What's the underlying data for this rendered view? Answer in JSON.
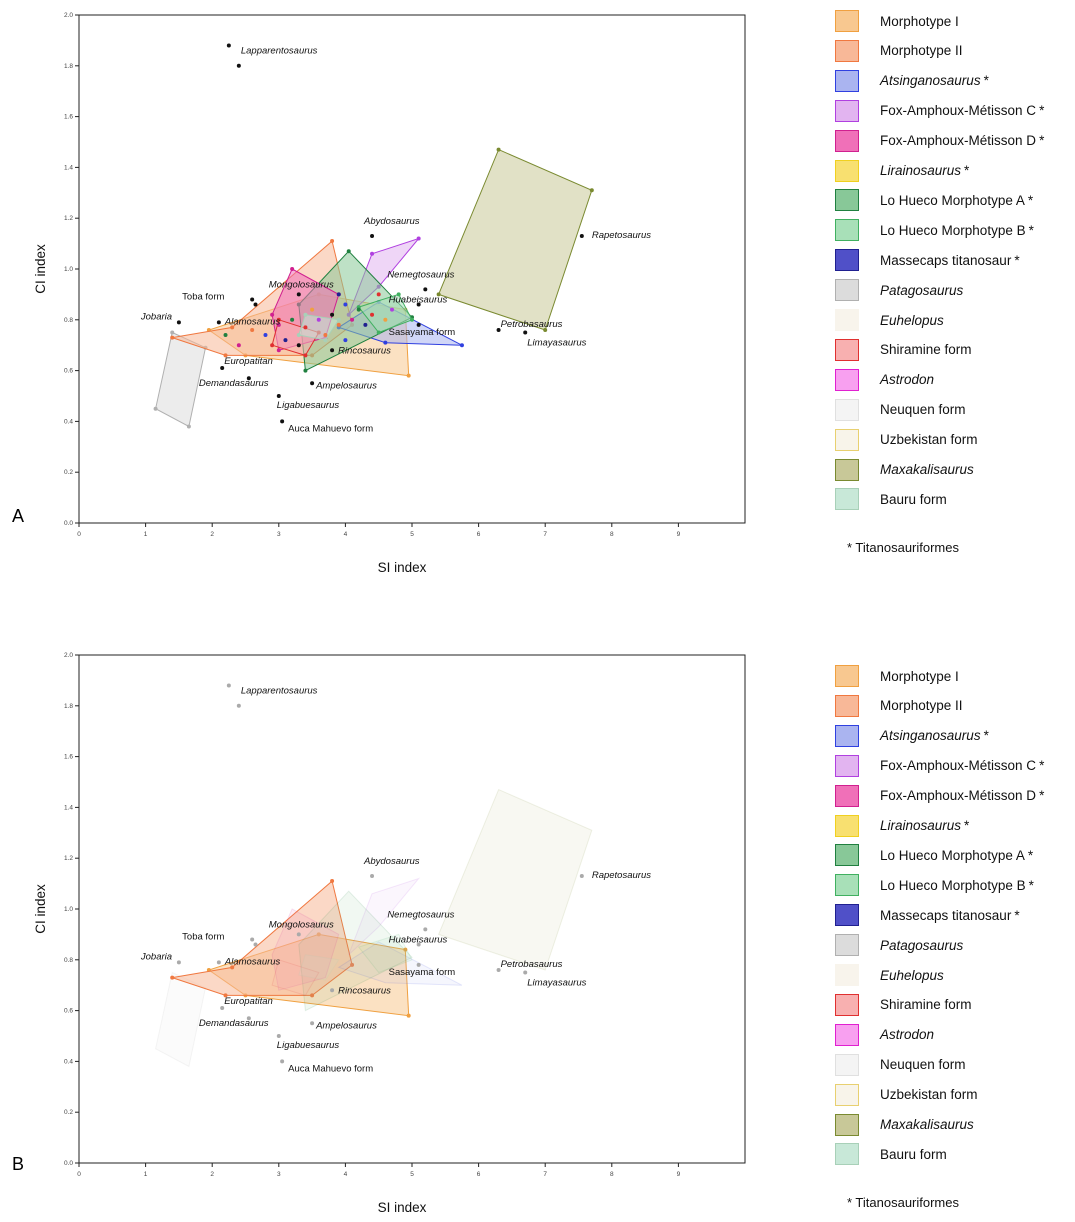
{
  "panels": [
    {
      "letter": "A",
      "mode": "full"
    },
    {
      "letter": "B",
      "mode": "highlight"
    }
  ],
  "legend": {
    "items": [
      {
        "label": "Morphotype I",
        "italic": false,
        "star": false,
        "fill": "#f8c890",
        "stroke": "#f0a040"
      },
      {
        "label": "Morphotype II",
        "italic": false,
        "star": false,
        "fill": "#f8b898",
        "stroke": "#f07840"
      },
      {
        "label": "Atsinganosaurus",
        "italic": true,
        "star": true,
        "fill": "#aab4f0",
        "stroke": "#3040e0"
      },
      {
        "label": "Fox-Amphoux-Métisson C",
        "italic": false,
        "star": true,
        "fill": "#e2b4f0",
        "stroke": "#b040e0"
      },
      {
        "label": "Fox-Amphoux-Métisson D",
        "italic": false,
        "star": true,
        "fill": "#f070b8",
        "stroke": "#d02090"
      },
      {
        "label": "Lirainosaurus",
        "italic": true,
        "star": true,
        "fill": "#f8e070",
        "stroke": "#f0d020"
      },
      {
        "label": "Lo Hueco Morphotype A",
        "italic": false,
        "star": true,
        "fill": "#88c898",
        "stroke": "#208040"
      },
      {
        "label": "Lo Hueco Morphotype B",
        "italic": false,
        "star": true,
        "fill": "#a8e0b8",
        "stroke": "#40b060"
      },
      {
        "label": "Massecaps titanosaur",
        "italic": false,
        "star": true,
        "fill": "#5050c8",
        "stroke": "#202090"
      },
      {
        "label": "Patagosaurus",
        "italic": true,
        "star": false,
        "fill": "#dcdcdc",
        "stroke": "#b0b0b0"
      },
      {
        "label": "Euhelopus",
        "italic": true,
        "star": false,
        "fill": "#f8f4ec",
        "stroke": "#f8f4ec"
      },
      {
        "label": "Shiramine form",
        "italic": false,
        "star": false,
        "fill": "#f8b0b0",
        "stroke": "#e03030"
      },
      {
        "label": "Astrodon",
        "italic": true,
        "star": false,
        "fill": "#f8a0f0",
        "stroke": "#e020d0"
      },
      {
        "label": "Neuquen form",
        "italic": false,
        "star": false,
        "fill": "#f4f4f4",
        "stroke": "#e0e0e0"
      },
      {
        "label": "Uzbekistan form",
        "italic": false,
        "star": false,
        "fill": "#f8f4ea",
        "stroke": "#e8d070"
      },
      {
        "label": "Maxakalisaurus",
        "italic": true,
        "star": false,
        "fill": "#c8c898",
        "stroke": "#7a8a30"
      },
      {
        "label": "Bauru form",
        "italic": false,
        "star": false,
        "fill": "#c8e8d8",
        "stroke": "#a8d0b8"
      }
    ],
    "footnote": "* Titanosauriformes"
  },
  "chart_data": {
    "type": "scatter",
    "xlabel": "SI index",
    "ylabel": "CI index",
    "xlim": [
      0,
      10
    ],
    "ylim": [
      0,
      2.0
    ],
    "xticks": [
      "0",
      "1",
      "2",
      "3",
      "4",
      "5",
      "6",
      "7",
      "8",
      "9"
    ],
    "yticks": [
      "0.0",
      "0.2",
      "0.4",
      "0.6",
      "0.8",
      "1.0",
      "1.2",
      "1.4",
      "1.6",
      "1.8",
      "2.0"
    ],
    "hulls": [
      {
        "group": "Maxakalisaurus",
        "points": [
          [
            6.3,
            1.47
          ],
          [
            7.7,
            1.31
          ],
          [
            7.0,
            0.76
          ],
          [
            5.4,
            0.9
          ]
        ]
      },
      {
        "group": "Patagosaurus",
        "points": [
          [
            1.4,
            0.75
          ],
          [
            1.9,
            0.69
          ],
          [
            1.65,
            0.38
          ],
          [
            1.15,
            0.45
          ]
        ]
      },
      {
        "group": "Morphotype I",
        "points": [
          [
            3.6,
            0.9
          ],
          [
            4.9,
            0.84
          ],
          [
            4.95,
            0.58
          ],
          [
            2.5,
            0.66
          ],
          [
            1.95,
            0.76
          ]
        ]
      },
      {
        "group": "Morphotype II",
        "points": [
          [
            3.8,
            1.11
          ],
          [
            4.1,
            0.78
          ],
          [
            3.5,
            0.66
          ],
          [
            2.2,
            0.66
          ],
          [
            1.4,
            0.73
          ],
          [
            2.3,
            0.77
          ]
        ]
      },
      {
        "group": "Fox-Amphoux-Métisson C",
        "points": [
          [
            5.1,
            1.12
          ],
          [
            4.5,
            0.93
          ],
          [
            4.05,
            0.82
          ],
          [
            4.4,
            1.06
          ]
        ]
      },
      {
        "group": "Atsinganosaurus",
        "points": [
          [
            4.5,
            0.87
          ],
          [
            5.75,
            0.7
          ],
          [
            4.6,
            0.71
          ],
          [
            3.9,
            0.77
          ]
        ]
      },
      {
        "group": "Lo Hueco Morphotype A",
        "points": [
          [
            4.05,
            1.07
          ],
          [
            5.0,
            0.81
          ],
          [
            3.4,
            0.6
          ],
          [
            3.3,
            0.86
          ]
        ]
      },
      {
        "group": "Fox-Amphoux-Métisson D",
        "points": [
          [
            3.2,
            1.0
          ],
          [
            3.9,
            0.9
          ],
          [
            3.7,
            0.73
          ],
          [
            3.0,
            0.68
          ],
          [
            2.9,
            0.82
          ]
        ]
      },
      {
        "group": "Lo Hueco Morphotype B",
        "points": [
          [
            4.8,
            0.9
          ],
          [
            5.0,
            0.8
          ],
          [
            4.5,
            0.75
          ],
          [
            4.2,
            0.85
          ]
        ]
      },
      {
        "group": "Shiramine form",
        "points": [
          [
            3.0,
            0.8
          ],
          [
            3.6,
            0.75
          ],
          [
            3.4,
            0.66
          ],
          [
            2.9,
            0.7
          ]
        ]
      },
      {
        "group": "Bauru form",
        "points": [
          [
            3.4,
            0.82
          ],
          [
            3.9,
            0.8
          ],
          [
            3.7,
            0.72
          ],
          [
            3.3,
            0.74
          ]
        ]
      }
    ],
    "cluster_points": [
      [
        2.6,
        0.76
      ],
      [
        2.8,
        0.74
      ],
      [
        3.0,
        0.78
      ],
      [
        3.2,
        0.8
      ],
      [
        3.1,
        0.72
      ],
      [
        3.4,
        0.77
      ],
      [
        3.5,
        0.84
      ],
      [
        3.6,
        0.8
      ],
      [
        3.8,
        0.82
      ],
      [
        3.9,
        0.78
      ],
      [
        4.0,
        0.86
      ],
      [
        4.1,
        0.8
      ],
      [
        4.2,
        0.84
      ],
      [
        4.3,
        0.78
      ],
      [
        4.4,
        0.82
      ],
      [
        4.6,
        0.8
      ],
      [
        4.7,
        0.84
      ],
      [
        3.3,
        0.7
      ],
      [
        3.7,
        0.74
      ],
      [
        4.0,
        0.72
      ],
      [
        2.4,
        0.7
      ],
      [
        2.2,
        0.74
      ],
      [
        3.9,
        0.9
      ],
      [
        4.5,
        0.9
      ]
    ],
    "labeled_points": [
      {
        "label": "Lapparentosaurus",
        "x": 2.25,
        "y": 1.88,
        "italic": true,
        "dx": 12,
        "dy": 8
      },
      {
        "label": "Lapparentosaurus",
        "x": 2.4,
        "y": 1.8,
        "italic": true,
        "nolabel": true
      },
      {
        "label": "Abydosaurus",
        "x": 4.4,
        "y": 1.13,
        "italic": true,
        "dx": -8,
        "dy": -12
      },
      {
        "label": "Rapetosaurus",
        "x": 7.55,
        "y": 1.13,
        "italic": true,
        "dx": 10,
        "dy": 2
      },
      {
        "label": "Nemegtosaurus",
        "x": 5.2,
        "y": 0.92,
        "italic": true,
        "dx": -38,
        "dy": -12
      },
      {
        "label": "Huabeisaurus",
        "x": 5.1,
        "y": 0.86,
        "italic": true,
        "dx": -30,
        "dy": -2
      },
      {
        "label": "Sasayama form",
        "x": 5.1,
        "y": 0.78,
        "italic": false,
        "dx": -30,
        "dy": 10
      },
      {
        "label": "Petrobasaurus",
        "x": 6.3,
        "y": 0.76,
        "italic": true,
        "dx": 2,
        "dy": -3
      },
      {
        "label": "Limayasaurus",
        "x": 6.7,
        "y": 0.75,
        "italic": true,
        "dx": 2,
        "dy": 13
      },
      {
        "label": "Mongolosaurus",
        "x": 3.3,
        "y": 0.9,
        "italic": true,
        "dx": -30,
        "dy": -7
      },
      {
        "label": "Toba form",
        "x": 2.6,
        "y": 0.88,
        "italic": false,
        "dx": -70,
        "dy": 0
      },
      {
        "label": "Toba form",
        "x": 2.65,
        "y": 0.86,
        "italic": false,
        "nolabel": true
      },
      {
        "label": "Alamosaurus",
        "x": 2.1,
        "y": 0.79,
        "italic": true,
        "dx": 6,
        "dy": 2
      },
      {
        "label": "Jobaria",
        "x": 1.5,
        "y": 0.79,
        "italic": true,
        "dx": -38,
        "dy": -3
      },
      {
        "label": "Rincosaurus",
        "x": 3.8,
        "y": 0.68,
        "italic": true,
        "dx": 6,
        "dy": 3
      },
      {
        "label": "Europatitan",
        "x": 2.15,
        "y": 0.61,
        "italic": true,
        "dx": 2,
        "dy": -4
      },
      {
        "label": "Demandasaurus",
        "x": 2.55,
        "y": 0.57,
        "italic": true,
        "dx": -50,
        "dy": 8
      },
      {
        "label": "Ampelosaurus",
        "x": 3.5,
        "y": 0.55,
        "italic": true,
        "dx": 4,
        "dy": 5
      },
      {
        "label": "Ligabuesaurus",
        "x": 3.0,
        "y": 0.5,
        "italic": true,
        "dx": -2,
        "dy": 12
      },
      {
        "label": "Auca Mahuevo form",
        "x": 3.05,
        "y": 0.4,
        "italic": false,
        "dx": 6,
        "dy": 10
      }
    ]
  }
}
